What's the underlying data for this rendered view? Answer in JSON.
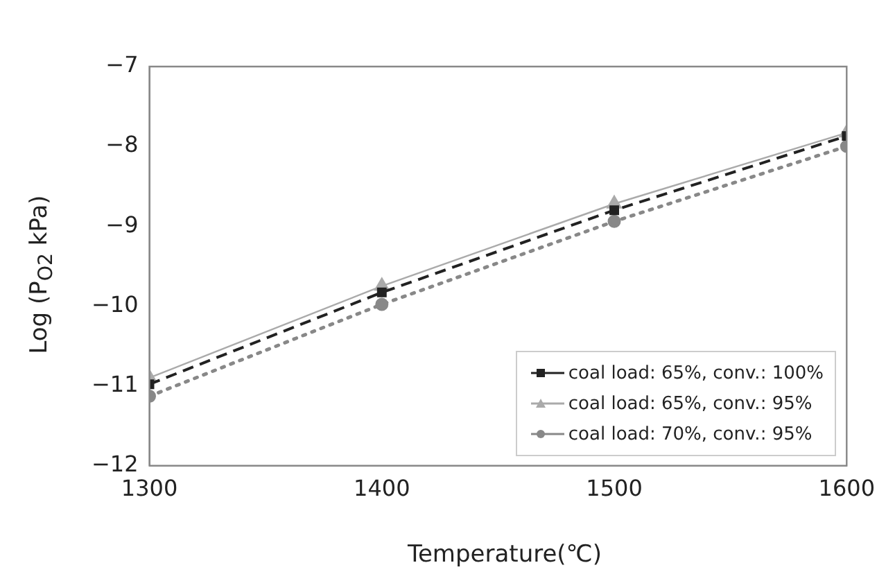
{
  "chart_data": {
    "type": "line",
    "xlabel": "Temperature(℃)",
    "ylabel": "Log (P$_{O2}$ kPa)",
    "x": [
      1300,
      1400,
      1500,
      1600
    ],
    "xlim": [
      1300,
      1600
    ],
    "xticks": [
      1300,
      1400,
      1500,
      1600
    ],
    "ylim": [
      -12,
      -7
    ],
    "yticks": [
      -12,
      -11,
      -10,
      -9,
      -8,
      -7
    ],
    "grid": false,
    "legend": "bottom right",
    "series": [
      {
        "name": "coal load: 65%, conv.: 100%",
        "color": "#222222",
        "values": [
          -10.98,
          -9.83,
          -8.8,
          -7.87
        ],
        "marker": "square",
        "line_style": "dashed"
      },
      {
        "name": "coal load: 65%, conv.: 95%",
        "color": "#aaaaaa",
        "values": [
          -10.9,
          -9.75,
          -8.72,
          -7.83
        ],
        "marker": "triangle",
        "line_style": "solid"
      },
      {
        "name": "coal load: 70%, conv.: 95%",
        "color": "#888888",
        "values": [
          -11.13,
          -9.98,
          -8.94,
          -8.0
        ],
        "marker": "circle",
        "line_style": "dotted"
      }
    ]
  }
}
